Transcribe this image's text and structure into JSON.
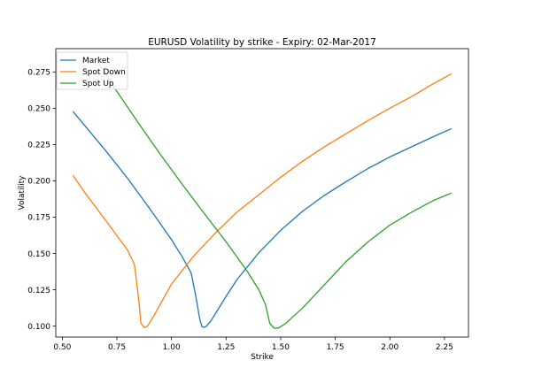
{
  "chart_data": {
    "type": "line",
    "title": "EURUSD  Volatility by strike - Expiry: 02-Mar-2017",
    "xlabel": "Strike",
    "ylabel": "Volatility",
    "xlim": [
      0.47,
      2.36
    ],
    "ylim": [
      0.0925,
      0.291
    ],
    "xticks": [
      0.5,
      0.75,
      1.0,
      1.25,
      1.5,
      1.75,
      2.0,
      2.25
    ],
    "xtick_labels": [
      "0.50",
      "0.75",
      "1.00",
      "1.25",
      "1.50",
      "1.75",
      "2.00",
      "2.25"
    ],
    "yticks": [
      0.1,
      0.125,
      0.15,
      0.175,
      0.2,
      0.225,
      0.25,
      0.275
    ],
    "ytick_labels": [
      "0.100",
      "0.125",
      "0.150",
      "0.175",
      "0.200",
      "0.225",
      "0.250",
      "0.275"
    ],
    "grid": false,
    "legend_position": "top-left",
    "series": [
      {
        "name": "Market",
        "color": "#1f77b4",
        "points": [
          [
            0.55,
            0.2475
          ],
          [
            0.6,
            0.2385
          ],
          [
            0.7,
            0.2205
          ],
          [
            0.8,
            0.2015
          ],
          [
            0.9,
            0.181
          ],
          [
            1.0,
            0.1595
          ],
          [
            1.05,
            0.1475
          ],
          [
            1.09,
            0.1365
          ],
          [
            1.11,
            0.1215
          ],
          [
            1.13,
            0.1045
          ],
          [
            1.14,
            0.0995
          ],
          [
            1.15,
            0.0992
          ],
          [
            1.16,
            0.1
          ],
          [
            1.18,
            0.1035
          ],
          [
            1.25,
            0.1205
          ],
          [
            1.3,
            0.132
          ],
          [
            1.4,
            0.1505
          ],
          [
            1.5,
            0.166
          ],
          [
            1.6,
            0.179
          ],
          [
            1.7,
            0.19
          ],
          [
            1.8,
            0.1995
          ],
          [
            1.9,
            0.2085
          ],
          [
            2.0,
            0.2165
          ],
          [
            2.1,
            0.2235
          ],
          [
            2.2,
            0.2305
          ],
          [
            2.28,
            0.2358
          ]
        ]
      },
      {
        "name": "Spot Down",
        "color": "#ff7f0e",
        "points": [
          [
            0.55,
            0.2035
          ],
          [
            0.6,
            0.1925
          ],
          [
            0.7,
            0.1725
          ],
          [
            0.8,
            0.152
          ],
          [
            0.83,
            0.1425
          ],
          [
            0.85,
            0.118
          ],
          [
            0.86,
            0.102
          ],
          [
            0.875,
            0.099
          ],
          [
            0.89,
            0.1
          ],
          [
            0.92,
            0.1075
          ],
          [
            1.0,
            0.129
          ],
          [
            1.1,
            0.148
          ],
          [
            1.2,
            0.164
          ],
          [
            1.3,
            0.1785
          ],
          [
            1.4,
            0.1905
          ],
          [
            1.5,
            0.2025
          ],
          [
            1.6,
            0.2135
          ],
          [
            1.7,
            0.2235
          ],
          [
            1.8,
            0.2325
          ],
          [
            1.9,
            0.2415
          ],
          [
            2.0,
            0.25
          ],
          [
            2.1,
            0.258
          ],
          [
            2.2,
            0.267
          ],
          [
            2.28,
            0.2735
          ]
        ]
      },
      {
        "name": "Spot Up",
        "color": "#2ca02c",
        "points": [
          [
            0.67,
            0.2805
          ],
          [
            0.75,
            0.2615
          ],
          [
            0.85,
            0.2395
          ],
          [
            0.95,
            0.218
          ],
          [
            1.05,
            0.1975
          ],
          [
            1.15,
            0.1775
          ],
          [
            1.25,
            0.158
          ],
          [
            1.35,
            0.137
          ],
          [
            1.4,
            0.125
          ],
          [
            1.43,
            0.115
          ],
          [
            1.45,
            0.102
          ],
          [
            1.47,
            0.0985
          ],
          [
            1.49,
            0.0988
          ],
          [
            1.52,
            0.1015
          ],
          [
            1.6,
            0.1125
          ],
          [
            1.7,
            0.1285
          ],
          [
            1.8,
            0.1445
          ],
          [
            1.9,
            0.158
          ],
          [
            2.0,
            0.1695
          ],
          [
            2.1,
            0.1785
          ],
          [
            2.2,
            0.1865
          ],
          [
            2.28,
            0.1915
          ]
        ]
      }
    ]
  }
}
